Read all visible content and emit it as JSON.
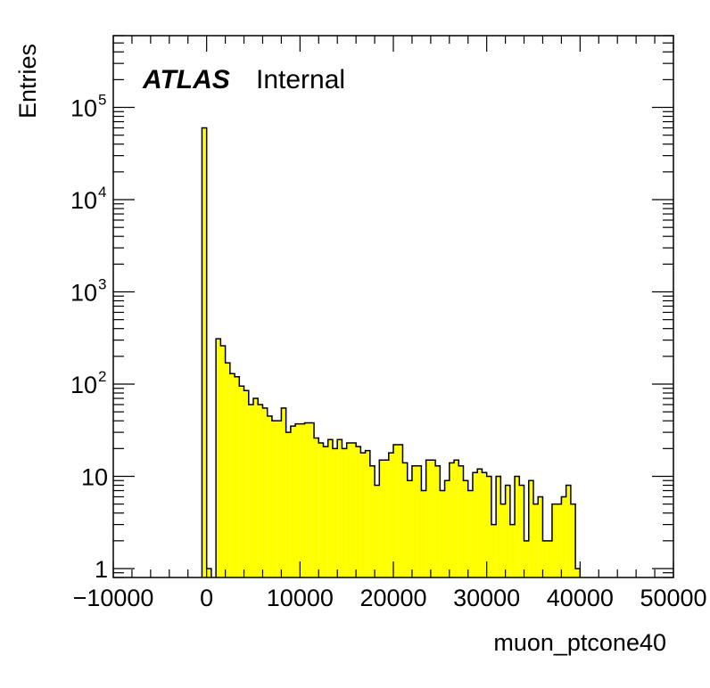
{
  "chart_data": {
    "type": "bar",
    "title": "",
    "xlabel": "muon_ptcone40",
    "ylabel": "Entries",
    "log_y": true,
    "xlim": [
      -10000,
      50000
    ],
    "ylim": [
      0.8,
      600000
    ],
    "x_ticks": [
      "−10000",
      "0",
      "10000",
      "20000",
      "30000",
      "40000",
      "50000"
    ],
    "x_tick_values": [
      -10000,
      0,
      10000,
      20000,
      30000,
      40000,
      50000
    ],
    "y_ticks": [
      {
        "value": 1,
        "base": "1",
        "exp": ""
      },
      {
        "value": 10,
        "base": "10",
        "exp": ""
      },
      {
        "value": 100,
        "base": "10",
        "exp": "2"
      },
      {
        "value": 1000,
        "base": "10",
        "exp": "3"
      },
      {
        "value": 10000,
        "base": "10",
        "exp": "4"
      },
      {
        "value": 100000,
        "base": "10",
        "exp": "5"
      }
    ],
    "bin_width": 500,
    "bin_start": -500,
    "values": [
      60000,
      1,
      0,
      310,
      260,
      170,
      130,
      120,
      95,
      85,
      60,
      70,
      60,
      55,
      45,
      40,
      40,
      55,
      30,
      35,
      37,
      37,
      38,
      38,
      26,
      23,
      21,
      25,
      20,
      25,
      20,
      23,
      23,
      21,
      18,
      19,
      13,
      8,
      15,
      15,
      18,
      22,
      22,
      14,
      9,
      13,
      13,
      7,
      15,
      15,
      13,
      7,
      9,
      14,
      15,
      13,
      9,
      7,
      11,
      12,
      11,
      10,
      3,
      10,
      5,
      8,
      3,
      10,
      8,
      2,
      9,
      5,
      6,
      2,
      2,
      5,
      5,
      6,
      8,
      5,
      1
    ],
    "fill_color": "#ffff00",
    "line_color": "#000000",
    "grid": false,
    "legend": "none"
  },
  "label": {
    "experiment": "ATLAS",
    "status": "Internal"
  }
}
